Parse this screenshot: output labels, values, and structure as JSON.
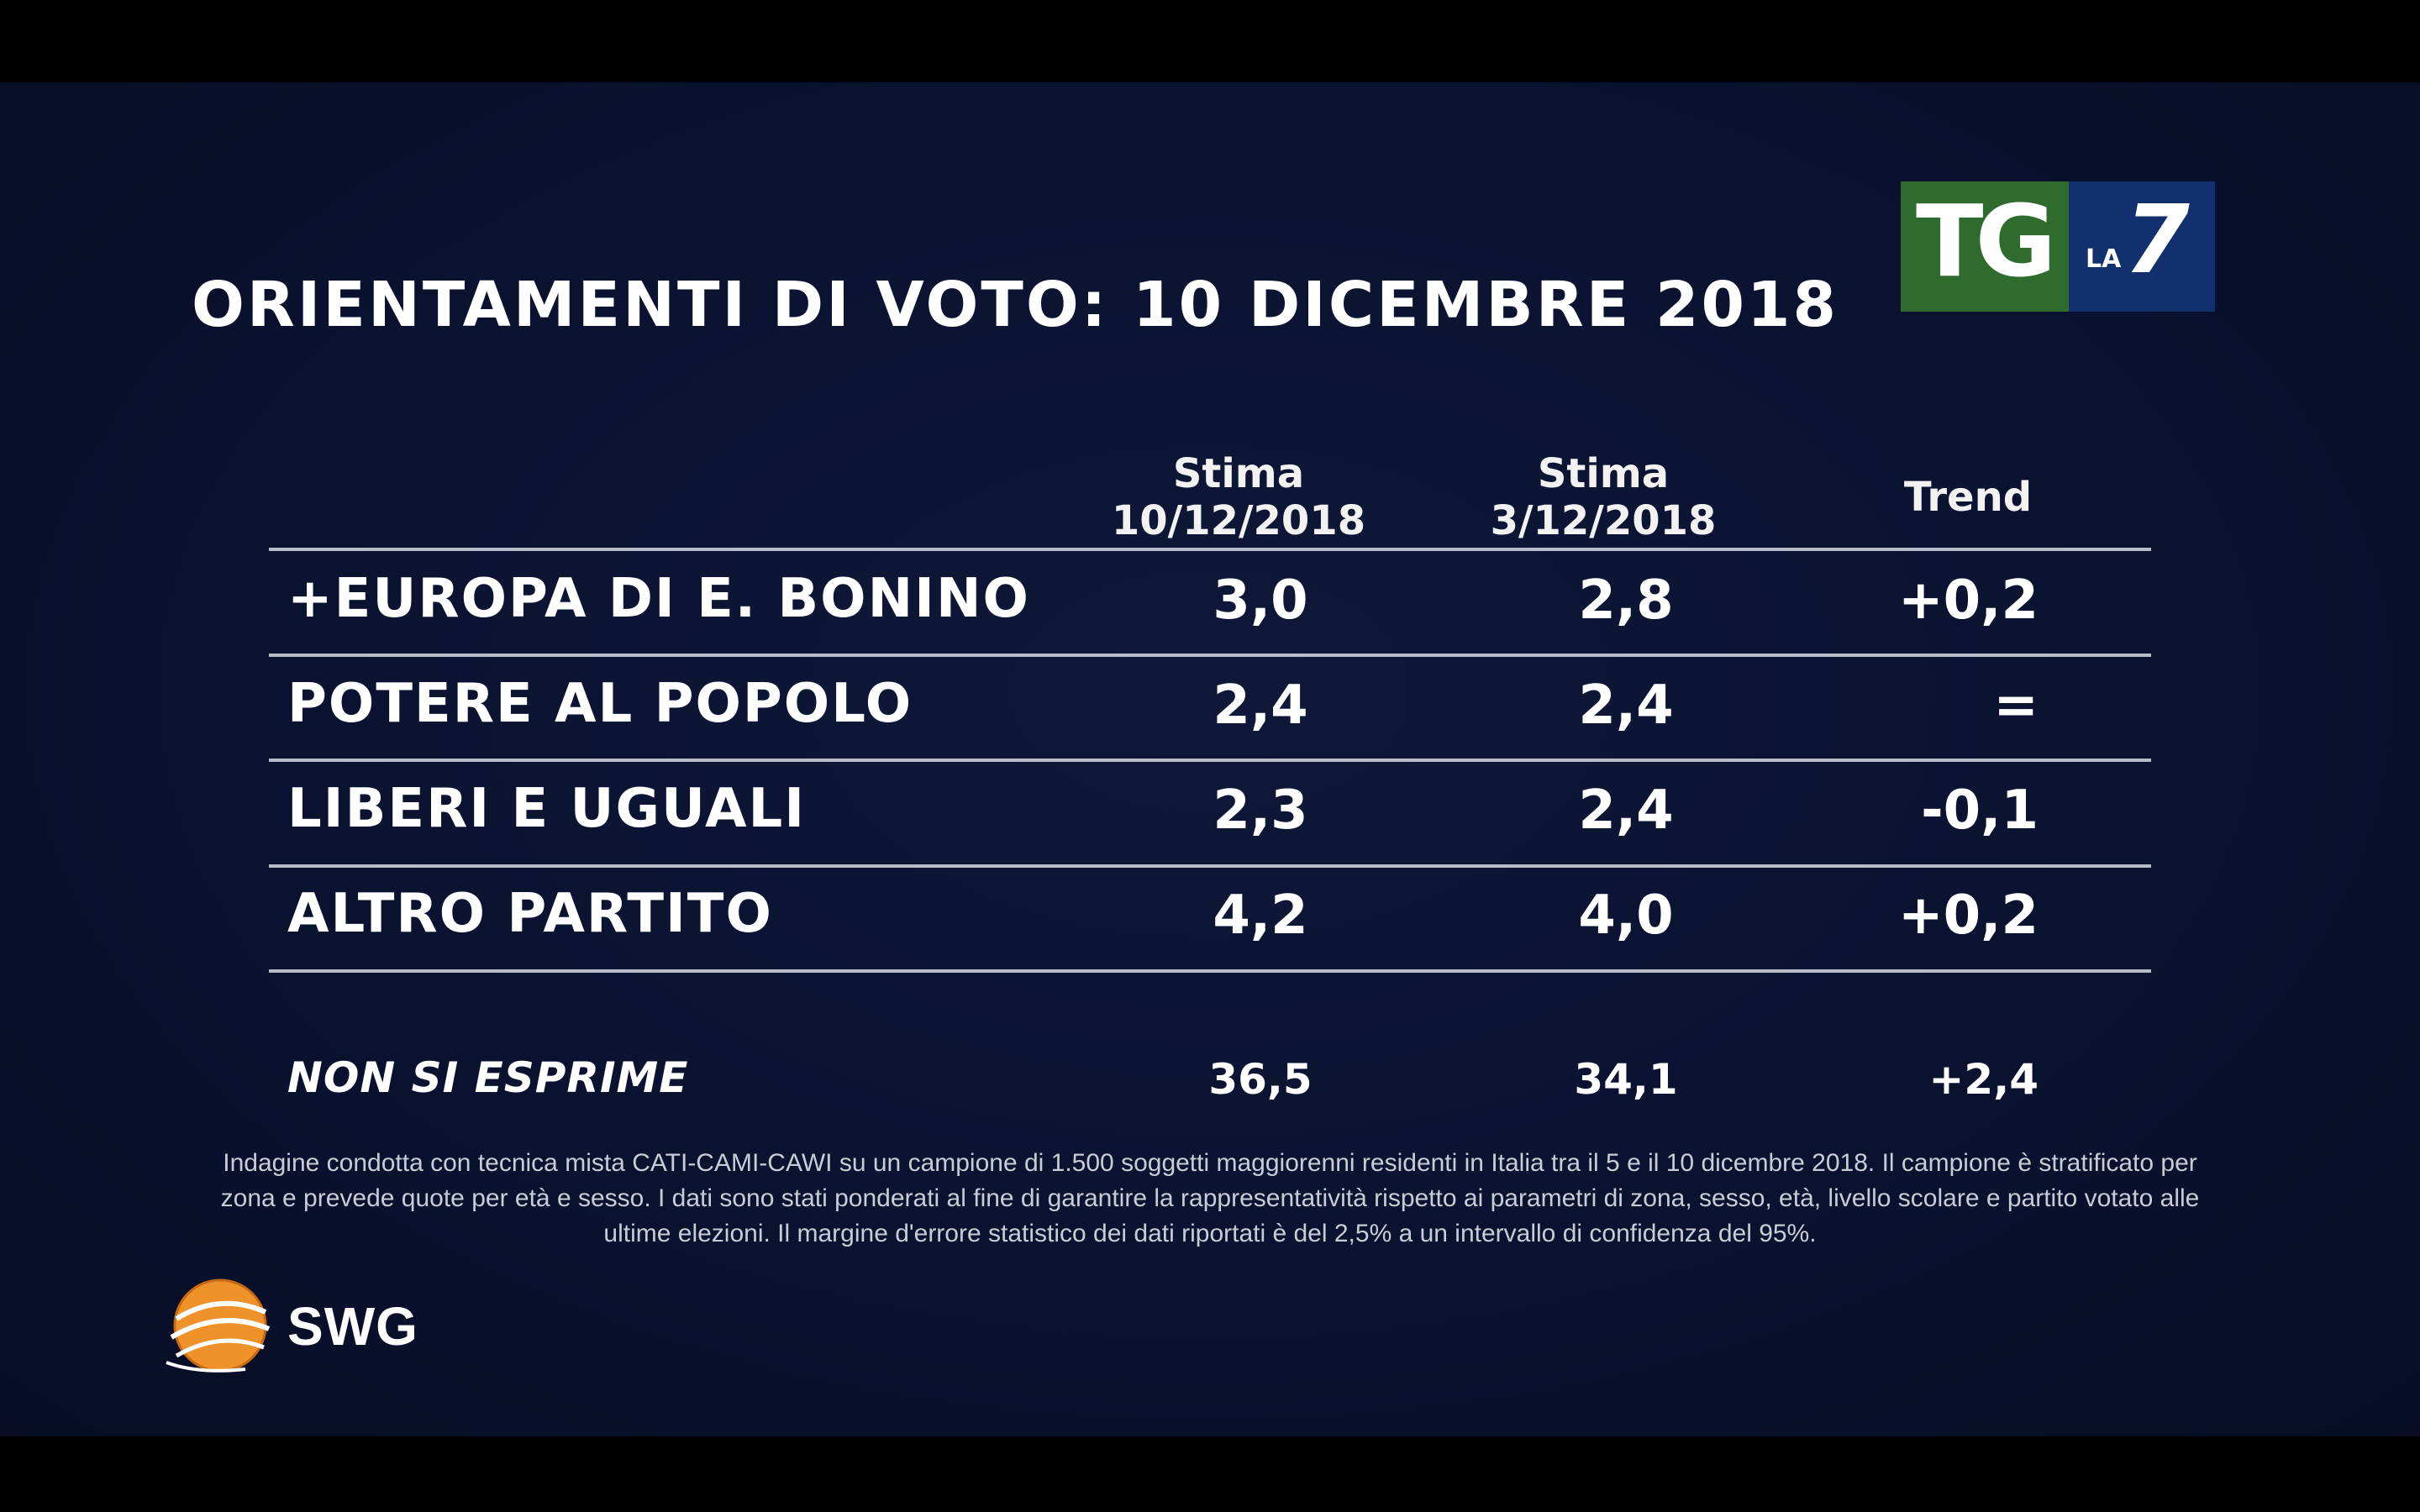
{
  "title": "ORIENTAMENTI DI VOTO: 10 DICEMBRE 2018",
  "logo": {
    "tg": "TG",
    "la": "LA",
    "seven": "7",
    "colors": {
      "tg_bg": "#2f6b2f",
      "la7_bg": "#13306e"
    }
  },
  "chart_data": {
    "type": "table",
    "title": "ORIENTAMENTI DI VOTO: 10 DICEMBRE 2018",
    "columns": [
      {
        "line1": "Stima",
        "line2": "10/12/2018"
      },
      {
        "line1": "Stima",
        "line2": "3/12/2018"
      },
      {
        "line1": "Trend",
        "line2": ""
      }
    ],
    "rows": [
      {
        "party": "+EUROPA DI E. BONINO",
        "stima_10_12": "3,0",
        "stima_3_12": "2,8",
        "trend": "+0,2"
      },
      {
        "party": "POTERE AL POPOLO",
        "stima_10_12": "2,4",
        "stima_3_12": "2,4",
        "trend": "="
      },
      {
        "party": "LIBERI E UGUALI",
        "stima_10_12": "2,3",
        "stima_3_12": "2,4",
        "trend": "-0,1"
      },
      {
        "party": "ALTRO PARTITO",
        "stima_10_12": "4,2",
        "stima_3_12": "4,0",
        "trend": "+0,2"
      }
    ],
    "non_si_esprime": {
      "label": "NON SI ESPRIME",
      "stima_10_12": "36,5",
      "stima_3_12": "34,1",
      "trend": "+2,4"
    }
  },
  "note": "Indagine condotta con tecnica mista CATI-CAMI-CAWI su un campione di 1.500 soggetti maggiorenni residenti in Italia tra il 5 e il 10 dicembre 2018. Il campione è stratificato per zona e prevede quote per età e sesso. I dati sono stati ponderati al fine di garantire la rappresentatività rispetto ai parametri di zona, sesso, età, livello scolare e partito votato alle ultime elezioni. Il margine d'errore statistico dei dati riportati è del 2,5% a un intervallo di confidenza del 95%.",
  "swg": {
    "label": "SWG",
    "colors": {
      "globe": "#f0922a",
      "ring": "#ffffff"
    }
  }
}
